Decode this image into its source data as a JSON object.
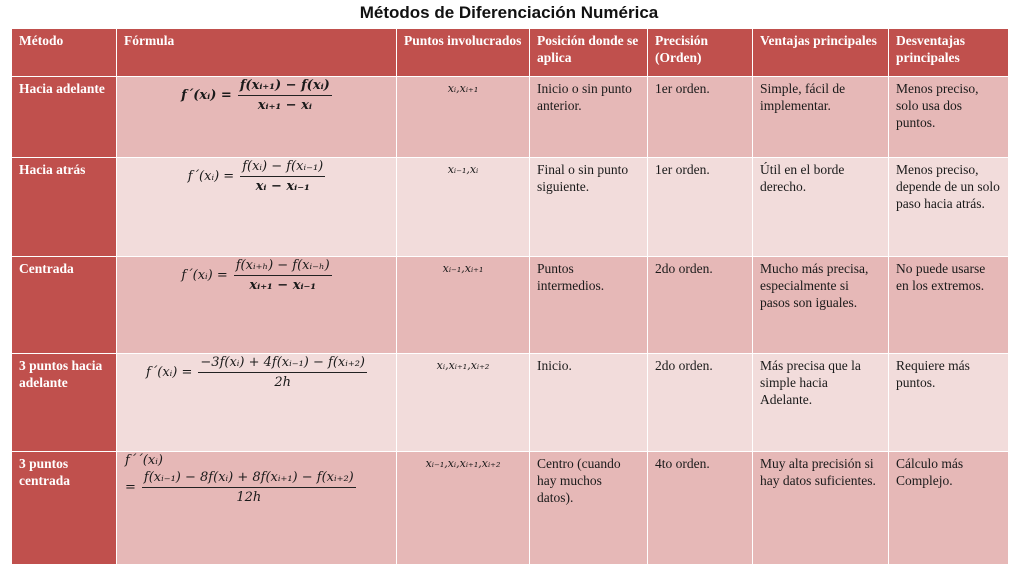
{
  "title": "Métodos de Diferenciación Numérica",
  "headers": {
    "metodo": "Método",
    "formula": "Fórmula",
    "puntos": "Puntos involucrados",
    "posicion": "Posición donde se aplica",
    "precision": "Precisión (Orden)",
    "ventajas": "Ventajas principales",
    "desventajas": "Desventajas principales"
  },
  "rows": [
    {
      "metodo": "Hacia adelante",
      "formula": {
        "lhs": "f´(xᵢ) =",
        "num": "f(xᵢ₊₁) − f(xᵢ)",
        "den": "xᵢ₊₁ − xᵢ"
      },
      "puntos": "xᵢ,xᵢ₊₁",
      "posicion": "Inicio o sin punto anterior.",
      "precision": "1er orden.",
      "ventajas": "Simple, fácil de implementar.",
      "desventajas": "Menos preciso, solo usa dos puntos."
    },
    {
      "metodo": "Hacia atrás",
      "formula": {
        "lhs": "f´(xᵢ) =",
        "num": "f(xᵢ) − f(xᵢ₋₁)",
        "den": "xᵢ − xᵢ₋₁"
      },
      "puntos": "xᵢ₋₁,xᵢ",
      "posicion": "Final o sin punto siguiente.",
      "precision": "1er orden.",
      "ventajas": "Útil en el borde derecho.",
      "desventajas": "Menos preciso, depende de un solo paso hacia atrás."
    },
    {
      "metodo": "Centrada",
      "formula": {
        "lhs": "f´(xᵢ) =",
        "num": "f(xᵢ₊ₕ) − f(xᵢ₋ₕ)",
        "den": "xᵢ₊₁ − xᵢ₋₁"
      },
      "puntos": "xᵢ₋₁,xᵢ₊₁",
      "posicion": "Puntos intermedios.",
      "precision": "2do orden.",
      "ventajas": "Mucho más precisa, especialmente si pasos son iguales.",
      "desventajas": "No puede usarse en los extremos."
    },
    {
      "metodo": "3 puntos hacia adelante",
      "formula": {
        "lhs": "f´(xᵢ) =",
        "num": "−3f(xᵢ) + 4f(xᵢ₋₁) − f(xᵢ₊₂)",
        "den": "2h"
      },
      "puntos": "xᵢ,xᵢ₊₁,xᵢ₊₂",
      "posicion": "Inicio.",
      "precision": "2do orden.",
      "ventajas": "Más precisa que la simple hacia Adelante.",
      "desventajas": "Requiere más puntos."
    },
    {
      "metodo": "3 puntos centrada",
      "formula": {
        "lhs": "f´´(xᵢ)",
        "eq": "=",
        "num": "f(xᵢ₋₁) − 8f(xᵢ) + 8f(xᵢ₊₁) − f(xᵢ₊₂)",
        "den": "12h"
      },
      "puntos": "xᵢ₋₁,xᵢ,xᵢ₊₁,xᵢ₊₂",
      "posicion": "Centro (cuando hay muchos datos).",
      "precision": "4to orden.",
      "ventajas": "Muy alta precisión si hay datos suficientes.",
      "desventajas": "Cálculo más Complejo."
    }
  ]
}
